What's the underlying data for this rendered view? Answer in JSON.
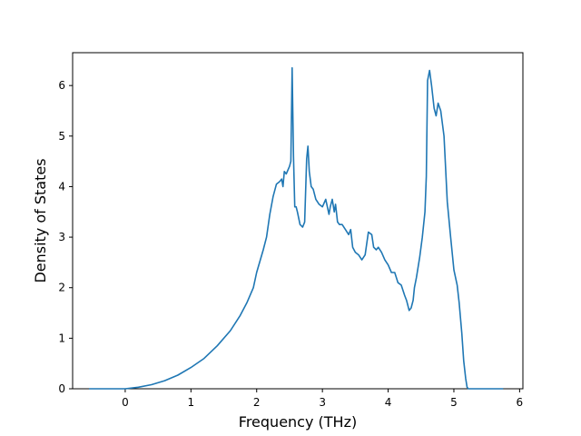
{
  "chart_data": {
    "type": "line",
    "title": "",
    "xlabel": "Frequency (THz)",
    "ylabel": "Density of States",
    "xlim": [
      -0.8,
      6.05
    ],
    "ylim": [
      0,
      6.65
    ],
    "xticks": [
      0,
      1,
      2,
      3,
      4,
      5,
      6
    ],
    "yticks": [
      0,
      1,
      2,
      3,
      4,
      5,
      6
    ],
    "grid": false,
    "legend": "none",
    "colors": {
      "line": "#1f77b4",
      "axes": "#000000",
      "background": "#ffffff"
    },
    "series": [
      {
        "x": [
          -0.55,
          0.0,
          0.2,
          0.4,
          0.6,
          0.8,
          1.0,
          1.2,
          1.4,
          1.6,
          1.75,
          1.85,
          1.95,
          2.0,
          2.1,
          2.15,
          2.2,
          2.25,
          2.3,
          2.35,
          2.38,
          2.4,
          2.42,
          2.45,
          2.5,
          2.52,
          2.54,
          2.56,
          2.58,
          2.6,
          2.62,
          2.66,
          2.7,
          2.73,
          2.76,
          2.78,
          2.8,
          2.83,
          2.86,
          2.9,
          2.95,
          3.0,
          3.05,
          3.1,
          3.12,
          3.15,
          3.18,
          3.2,
          3.23,
          3.26,
          3.3,
          3.35,
          3.4,
          3.43,
          3.46,
          3.5,
          3.55,
          3.6,
          3.65,
          3.7,
          3.75,
          3.78,
          3.82,
          3.85,
          3.9,
          3.95,
          4.0,
          4.05,
          4.1,
          4.15,
          4.2,
          4.25,
          4.28,
          4.32,
          4.35,
          4.38,
          4.4,
          4.43,
          4.48,
          4.52,
          4.56,
          4.58,
          4.6,
          4.63,
          4.66,
          4.7,
          4.73,
          4.76,
          4.8,
          4.85,
          4.9,
          4.95,
          5.0,
          5.05,
          5.08,
          5.12,
          5.15,
          5.18,
          5.2,
          5.22,
          5.3,
          5.5,
          5.75
        ],
        "y": [
          0.0,
          0.0,
          0.03,
          0.08,
          0.16,
          0.27,
          0.42,
          0.6,
          0.85,
          1.15,
          1.45,
          1.7,
          2.0,
          2.3,
          2.75,
          3.0,
          3.45,
          3.8,
          4.05,
          4.1,
          4.15,
          4.0,
          4.3,
          4.25,
          4.4,
          4.5,
          6.35,
          4.6,
          3.6,
          3.6,
          3.5,
          3.25,
          3.2,
          3.3,
          4.55,
          4.8,
          4.3,
          4.0,
          3.95,
          3.75,
          3.65,
          3.6,
          3.75,
          3.45,
          3.6,
          3.75,
          3.5,
          3.65,
          3.3,
          3.25,
          3.25,
          3.15,
          3.05,
          3.15,
          2.8,
          2.7,
          2.65,
          2.55,
          2.65,
          3.1,
          3.05,
          2.8,
          2.75,
          2.8,
          2.7,
          2.55,
          2.45,
          2.3,
          2.3,
          2.1,
          2.05,
          1.85,
          1.75,
          1.55,
          1.6,
          1.75,
          2.0,
          2.2,
          2.6,
          3.0,
          3.5,
          4.2,
          6.1,
          6.3,
          6.0,
          5.55,
          5.4,
          5.65,
          5.5,
          5.0,
          3.7,
          3.0,
          2.35,
          2.05,
          1.7,
          1.1,
          0.55,
          0.2,
          0.03,
          0.0,
          0.0,
          0.0,
          0.0
        ]
      }
    ]
  }
}
